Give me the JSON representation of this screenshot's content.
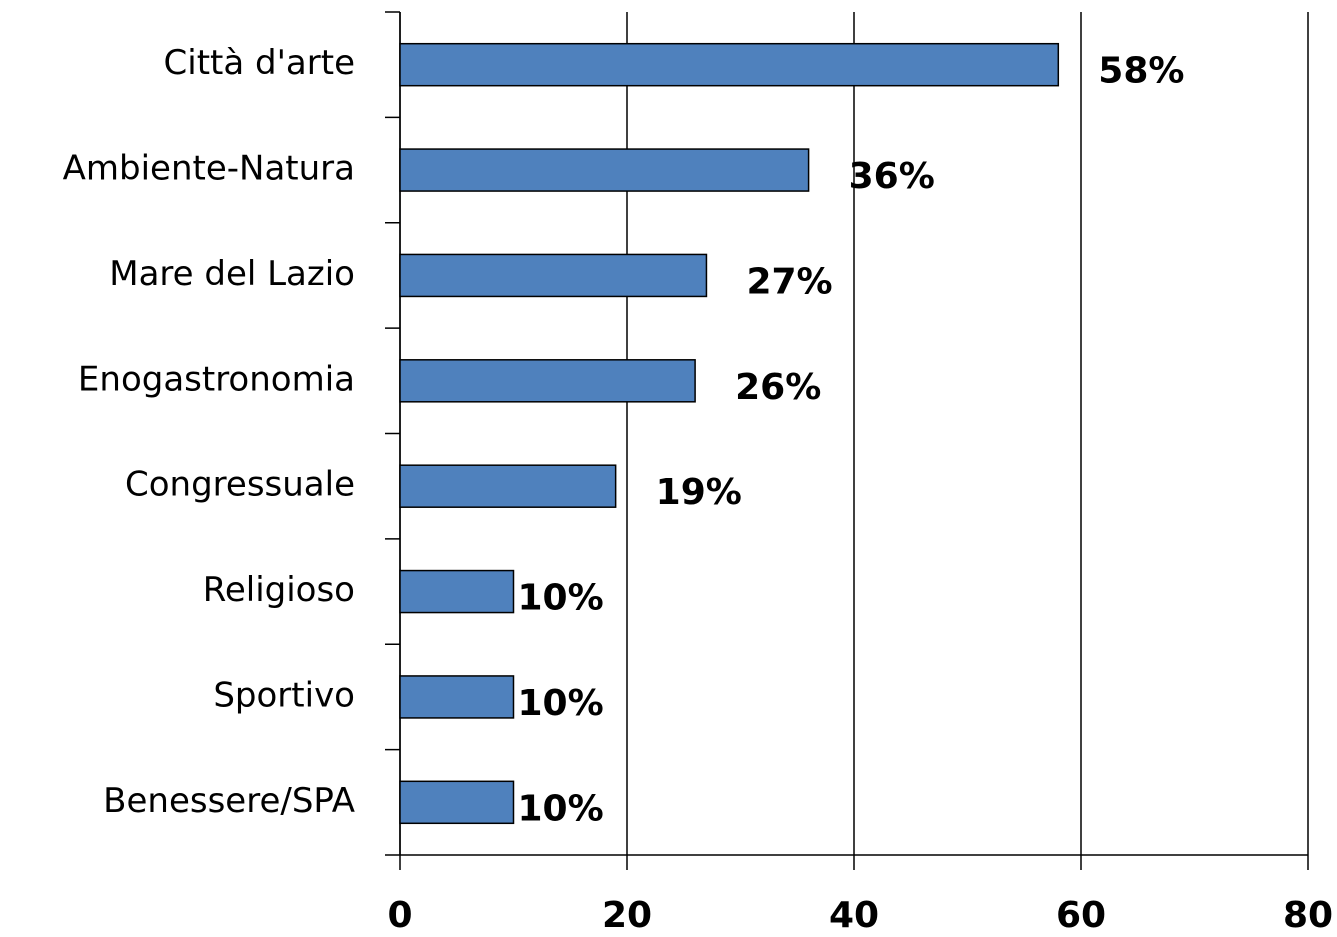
{
  "chart_data": {
    "type": "barh",
    "categories": [
      "Città d'arte",
      "Ambiente-Natura",
      "Mare del Lazio",
      "Enogastronomia",
      "Congressuale",
      "Religioso",
      "Sportivo",
      "Benessere/SPA"
    ],
    "values": [
      58,
      36,
      27,
      26,
      19,
      10,
      10,
      10
    ],
    "value_labels": [
      "58%",
      "36%",
      "27%",
      "26%",
      "19%",
      "10%",
      "10%",
      "10%"
    ],
    "color": "#4f81bd",
    "xlim": [
      0,
      80
    ],
    "xticks": [
      0,
      20,
      40,
      60,
      80
    ],
    "grid": true
  }
}
